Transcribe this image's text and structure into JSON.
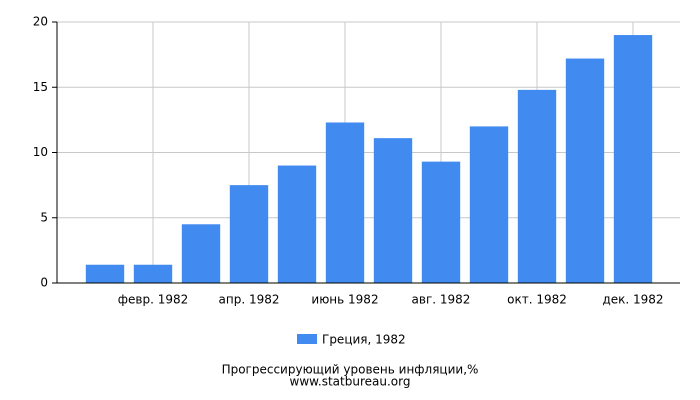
{
  "chart_data": {
    "type": "bar",
    "title": "Прогрессирующий уровень инфляции,%",
    "source": "www.statbureau.org",
    "categories": [
      null,
      "февр. 1982",
      null,
      "апр. 1982",
      null,
      "июнь 1982",
      null,
      "авг. 1982",
      null,
      "окт. 1982",
      null,
      "дек. 1982"
    ],
    "series": [
      {
        "name": "Греция, 1982",
        "color": "#418bf0",
        "values": [
          1.4,
          1.4,
          4.5,
          7.5,
          9.0,
          12.3,
          11.1,
          9.3,
          12.0,
          14.8,
          17.2,
          19.0
        ]
      }
    ],
    "ylim": [
      0,
      20
    ],
    "yticks": [
      0,
      5,
      10,
      15,
      20
    ],
    "grid": true
  }
}
